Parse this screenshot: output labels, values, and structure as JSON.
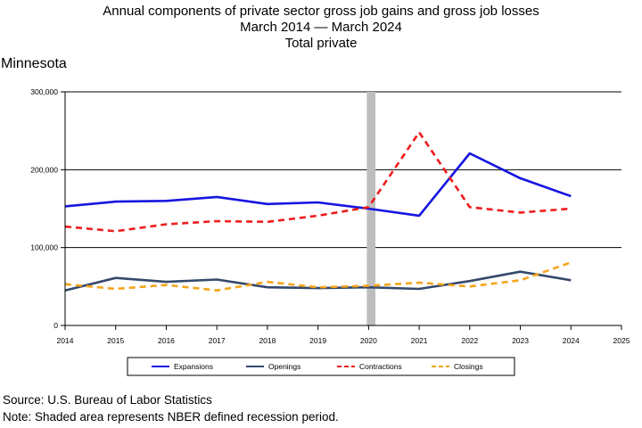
{
  "header": {
    "title_line1": "Annual components of private sector gross job gains and gross job losses",
    "title_line2": "March 2014 — March 2024",
    "title_line3": "Total private",
    "region": "Minnesota"
  },
  "footer": {
    "source": "Source: U.S. Bureau of Labor Statistics",
    "note": "Note: Shaded area represents NBER defined recession period."
  },
  "chart_data": {
    "type": "line",
    "x": [
      2014,
      2015,
      2016,
      2017,
      2018,
      2019,
      2020,
      2021,
      2022,
      2023,
      2024
    ],
    "x_ticks": [
      "2014",
      "2015",
      "2016",
      "2017",
      "2018",
      "2019",
      "2020",
      "2021",
      "2022",
      "2023",
      "2024",
      "2025"
    ],
    "xlim": [
      2014,
      2025
    ],
    "ylim": [
      0,
      300000
    ],
    "y_ticks": [
      0,
      100000,
      200000,
      300000
    ],
    "y_tick_labels": [
      "0",
      "100,000",
      "200,000",
      "300,000"
    ],
    "gridlines": "horizontal",
    "recession_band": [
      2020.0,
      2020.1
    ],
    "recession_color": "#bebebe",
    "legend_position": "bottom",
    "series": [
      {
        "name": "Expansions",
        "color": "#1515e0",
        "dash": "solid",
        "width": 2.6,
        "values": [
          153000,
          159000,
          160000,
          165000,
          156000,
          158000,
          150000,
          141000,
          221000,
          189000,
          166000
        ]
      },
      {
        "name": "Openings",
        "color": "#34496b",
        "dash": "solid",
        "width": 2.6,
        "values": [
          45000,
          61000,
          56000,
          59000,
          49000,
          48000,
          49000,
          47000,
          57000,
          69000,
          58000
        ]
      },
      {
        "name": "Contractions",
        "color": "#ee1c1c",
        "dash": "dashed",
        "width": 2.6,
        "values": [
          127000,
          121000,
          130000,
          134000,
          133000,
          141000,
          152000,
          248000,
          152000,
          145000,
          150000
        ]
      },
      {
        "name": "Closings",
        "color": "#f5a41a",
        "dash": "dashed",
        "width": 2.6,
        "values": [
          53000,
          47000,
          52000,
          45000,
          56000,
          49000,
          51000,
          55000,
          50000,
          58000,
          81000
        ]
      }
    ]
  }
}
